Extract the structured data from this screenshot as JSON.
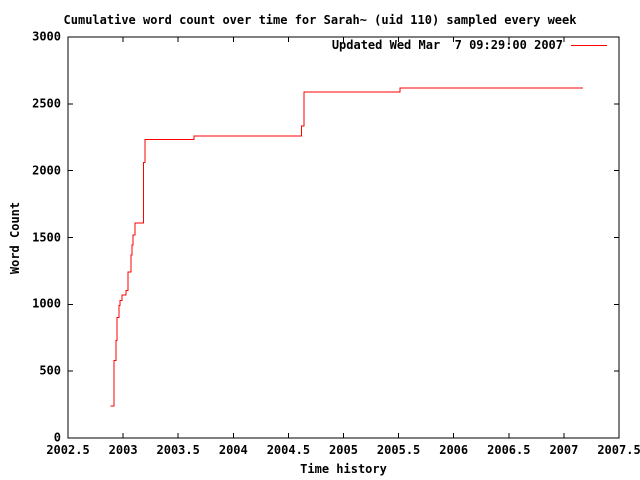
{
  "chart_data": {
    "type": "line",
    "title": "Cumulative word count over time for Sarah~ (uid 110) sampled every week",
    "xlabel": "Time history",
    "ylabel": "Word Count",
    "xlim": [
      2002.5,
      2007.5
    ],
    "ylim": [
      0,
      3000
    ],
    "grid": false,
    "legend_position": "top-right-inside",
    "xticks": [
      {
        "v": 2002.5,
        "label": "2002.5"
      },
      {
        "v": 2003,
        "label": "2003"
      },
      {
        "v": 2003.5,
        "label": "2003.5"
      },
      {
        "v": 2004,
        "label": "2004"
      },
      {
        "v": 2004.5,
        "label": "2004.5"
      },
      {
        "v": 2005,
        "label": "2005"
      },
      {
        "v": 2005.5,
        "label": "2005.5"
      },
      {
        "v": 2006,
        "label": "2006"
      },
      {
        "v": 2006.5,
        "label": "2006.5"
      },
      {
        "v": 2007,
        "label": "2007"
      },
      {
        "v": 2007.5,
        "label": "2007.5"
      }
    ],
    "yticks": [
      {
        "v": 0,
        "label": "0"
      },
      {
        "v": 500,
        "label": "500"
      },
      {
        "v": 1000,
        "label": "1000"
      },
      {
        "v": 1500,
        "label": "1500"
      },
      {
        "v": 2000,
        "label": "2000"
      },
      {
        "v": 2500,
        "label": "2500"
      },
      {
        "v": 3000,
        "label": "3000"
      }
    ],
    "series": [
      {
        "name": "Updated Wed Mar  7 09:29:00 2007",
        "color": "#ff0000",
        "points": [
          [
            2002.886,
            241
          ],
          [
            2002.917,
            241
          ],
          [
            2002.917,
            579
          ],
          [
            2002.936,
            579
          ],
          [
            2002.936,
            729
          ],
          [
            2002.945,
            729
          ],
          [
            2002.945,
            902
          ],
          [
            2002.963,
            902
          ],
          [
            2002.963,
            992
          ],
          [
            2002.972,
            992
          ],
          [
            2002.972,
            1030
          ],
          [
            2002.99,
            1030
          ],
          [
            2002.99,
            1068
          ],
          [
            2003.026,
            1068
          ],
          [
            2003.026,
            1105
          ],
          [
            2003.044,
            1105
          ],
          [
            2003.044,
            1241
          ],
          [
            2003.072,
            1241
          ],
          [
            2003.072,
            1368
          ],
          [
            2003.081,
            1368
          ],
          [
            2003.081,
            1444
          ],
          [
            2003.09,
            1444
          ],
          [
            2003.09,
            1519
          ],
          [
            2003.108,
            1519
          ],
          [
            2003.108,
            1609
          ],
          [
            2003.185,
            1609
          ],
          [
            2003.185,
            2060
          ],
          [
            2003.199,
            2060
          ],
          [
            2003.199,
            2233
          ],
          [
            2003.643,
            2233
          ],
          [
            2003.643,
            2259
          ],
          [
            2004.62,
            2259
          ],
          [
            2004.62,
            2333
          ],
          [
            2004.641,
            2333
          ],
          [
            2004.641,
            2590
          ],
          [
            2005.513,
            2590
          ],
          [
            2005.513,
            2620
          ],
          [
            2007.173,
            2620
          ]
        ]
      }
    ]
  },
  "colors": {
    "background": "#ffffff",
    "foreground": "#000000",
    "series_red": "#ff0000"
  }
}
